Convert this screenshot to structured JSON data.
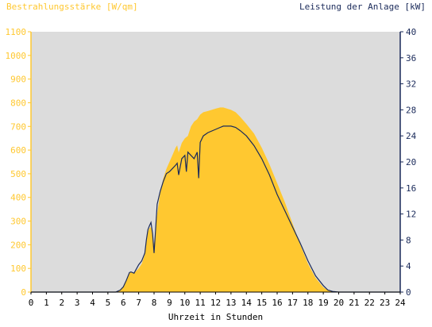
{
  "chart_data": {
    "type": "area",
    "left_axis_label": "Bestrahlungsstärke [W/qm]",
    "right_axis_label": "Leistung der Anlage [kW]",
    "xlabel": "Uhrzeit in Stunden",
    "x_ticks": [
      "0",
      "1",
      "2",
      "3",
      "4",
      "5",
      "6",
      "7",
      "8",
      "9",
      "10",
      "11",
      "12",
      "13",
      "14",
      "15",
      "16",
      "17",
      "18",
      "19",
      "20",
      "21",
      "22",
      "23",
      "24"
    ],
    "y_left_ticks": [
      "0",
      "100",
      "200",
      "300",
      "400",
      "500",
      "600",
      "700",
      "800",
      "900",
      "1000",
      "1100"
    ],
    "y_right_ticks": [
      "0",
      "4",
      "8",
      "12",
      "16",
      "20",
      "24",
      "28",
      "32",
      "36",
      "40"
    ],
    "xlim": [
      0,
      24
    ],
    "ylim_left": [
      0,
      1100
    ],
    "ylim_right": [
      0,
      40
    ],
    "grid": false,
    "colors": {
      "plot_background": "#dcdcdc",
      "irradiance_fill": "#ffc830",
      "power_line": "#1a2a5a",
      "left_axis": "#ffc830",
      "right_axis": "#1a2a5a"
    },
    "series": [
      {
        "name": "Bestrahlungsstärke [W/qm]",
        "axis": "left",
        "style": "area",
        "x": [
          0,
          5.5,
          5.8,
          6.0,
          6.2,
          6.4,
          6.5,
          6.7,
          7.0,
          7.2,
          7.4,
          7.5,
          7.6,
          7.7,
          7.8,
          7.9,
          8.0,
          8.1,
          8.2,
          8.4,
          8.6,
          8.8,
          9.0,
          9.2,
          9.4,
          9.5,
          9.6,
          9.8,
          10.0,
          10.2,
          10.4,
          10.6,
          10.8,
          11.0,
          11.2,
          11.5,
          12.0,
          12.3,
          12.5,
          13.0,
          13.3,
          13.6,
          14.0,
          14.5,
          15.0,
          15.5,
          16.0,
          16.5,
          17.0,
          17.5,
          18.0,
          18.5,
          19.0,
          19.3,
          19.6,
          20.0,
          24
        ],
        "values": [
          0,
          0,
          10,
          25,
          50,
          80,
          85,
          80,
          100,
          120,
          160,
          210,
          255,
          270,
          275,
          240,
          200,
          260,
          330,
          420,
          480,
          520,
          550,
          580,
          610,
          620,
          590,
          630,
          650,
          660,
          700,
          720,
          730,
          750,
          760,
          765,
          775,
          780,
          780,
          770,
          760,
          740,
          710,
          670,
          610,
          540,
          460,
          380,
          290,
          200,
          120,
          60,
          20,
          8,
          3,
          0,
          0
        ]
      },
      {
        "name": "Leistung der Anlage [kW]",
        "axis": "right",
        "style": "line",
        "x": [
          0,
          5.5,
          5.8,
          6.0,
          6.2,
          6.4,
          6.5,
          6.7,
          7.0,
          7.2,
          7.4,
          7.5,
          7.6,
          7.7,
          7.8,
          7.9,
          8.0,
          8.1,
          8.2,
          8.4,
          8.6,
          8.8,
          9.0,
          9.2,
          9.4,
          9.5,
          9.6,
          9.8,
          10.0,
          10.1,
          10.2,
          10.4,
          10.6,
          10.8,
          10.9,
          11.0,
          11.2,
          11.5,
          12.0,
          12.3,
          12.5,
          13.0,
          13.3,
          13.6,
          14.0,
          14.5,
          15.0,
          15.5,
          16.0,
          16.5,
          17.0,
          17.5,
          18.0,
          18.5,
          19.0,
          19.3,
          19.6,
          20.0,
          24
        ],
        "values": [
          0,
          0,
          0.3,
          0.8,
          1.8,
          3.0,
          3.1,
          2.9,
          4.2,
          4.8,
          6.0,
          8.0,
          9.6,
          10.2,
          10.7,
          9.0,
          6.0,
          9.5,
          13.5,
          15.5,
          17.0,
          18.2,
          18.5,
          19.0,
          19.5,
          19.8,
          18.0,
          20.5,
          21.0,
          18.5,
          21.5,
          21.0,
          20.5,
          21.5,
          17.5,
          23.0,
          24.0,
          24.5,
          25.0,
          25.3,
          25.5,
          25.5,
          25.3,
          24.8,
          24.0,
          22.5,
          20.5,
          18.0,
          15.0,
          12.5,
          10.0,
          7.5,
          4.8,
          2.5,
          1.0,
          0.3,
          0.1,
          0,
          0
        ]
      }
    ]
  }
}
